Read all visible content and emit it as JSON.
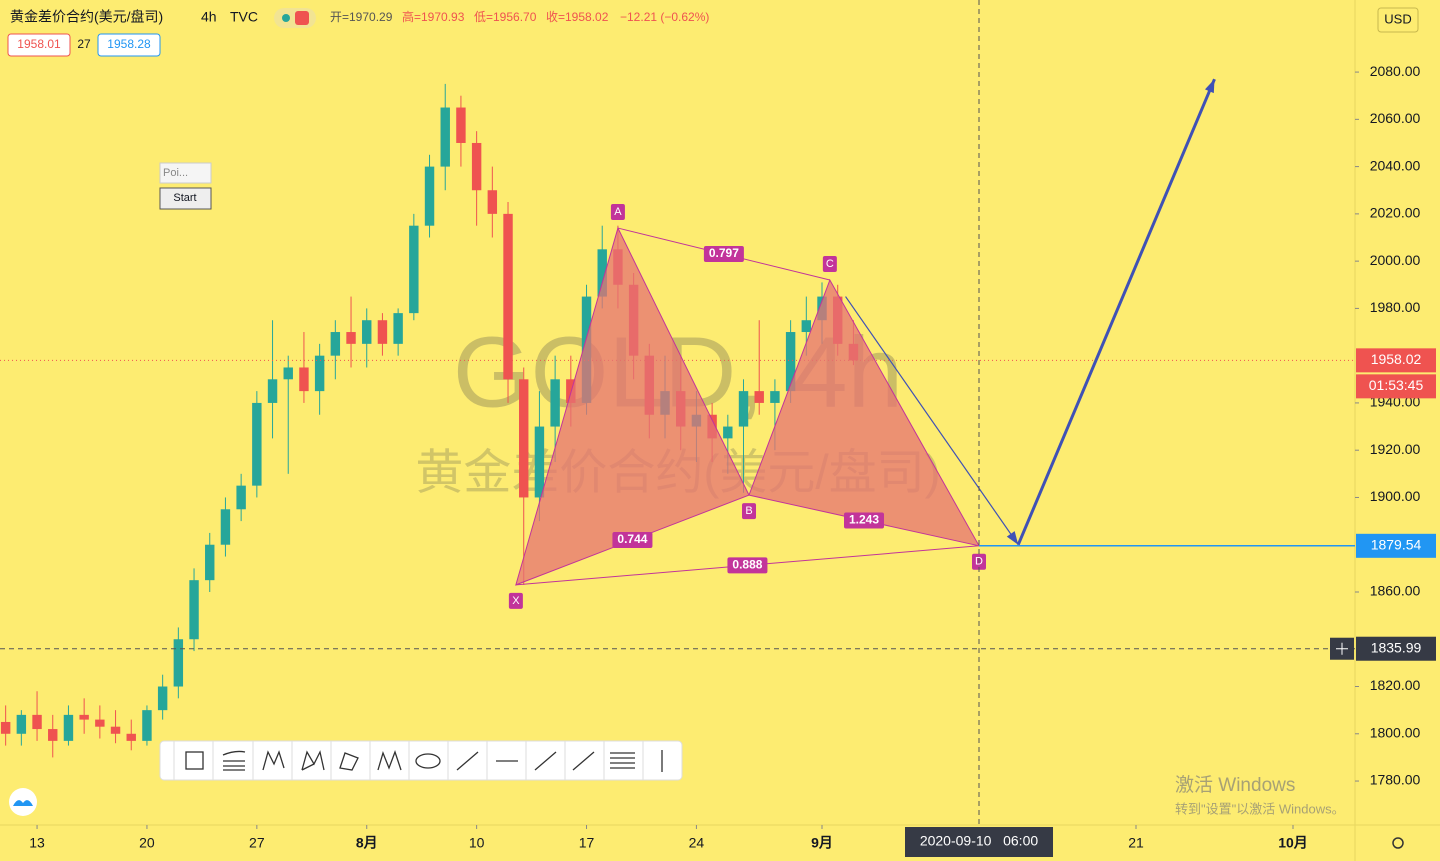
{
  "header": {
    "symbol": "黄金差价合约(美元/盘司)",
    "interval": "4h",
    "source": "TVC",
    "ohlc": [
      "开=1970.29",
      "高=1970.93",
      "低=1956.70",
      "收=1958.02",
      "−12.21 (−0.62%)"
    ],
    "bid": "1958.01",
    "spread": "27",
    "ask": "1958.28"
  },
  "currency": "USD",
  "watermark": {
    "line1": "GOLD, 4h",
    "line2": "黄金差价合约(美元/盘司)"
  },
  "panel": {
    "title": "Poi...",
    "button": "Start"
  },
  "windows": {
    "line1": "激活 Windows",
    "line2": "转到\"设置\"以激活 Windows。"
  },
  "chart_data": {
    "type": "candlestick",
    "x": [
      -2,
      -1,
      0,
      1,
      2,
      3,
      4,
      5,
      6,
      7,
      8,
      9,
      10,
      11,
      12,
      13,
      14,
      15,
      16,
      17,
      18,
      19,
      20,
      21,
      22,
      23,
      24,
      25,
      26,
      27,
      28,
      29,
      30,
      31,
      32,
      33,
      34,
      35,
      36,
      37,
      38,
      39,
      40,
      41,
      42,
      43,
      44,
      45,
      46,
      47,
      48,
      49,
      50,
      51,
      52
    ],
    "open": [
      1805,
      1800,
      1808,
      1802,
      1797,
      1808,
      1806,
      1803,
      1800,
      1797,
      1810,
      1820,
      1840,
      1865,
      1880,
      1895,
      1905,
      1940,
      1950,
      1955,
      1945,
      1960,
      1970,
      1965,
      1975,
      1965,
      1978,
      2015,
      2040,
      2065,
      2050,
      2030,
      2020,
      1950,
      1900,
      1930,
      1950,
      1940,
      1985,
      2005,
      1990,
      1960,
      1935,
      1945,
      1930,
      1935,
      1925,
      1930,
      1945,
      1940,
      1945,
      1970,
      1975,
      1985,
      1965
    ],
    "high": [
      1812,
      1810,
      1818,
      1808,
      1812,
      1815,
      1812,
      1810,
      1806,
      1812,
      1825,
      1845,
      1870,
      1885,
      1900,
      1910,
      1945,
      1975,
      1960,
      1970,
      1965,
      1975,
      1985,
      1980,
      1978,
      1980,
      2020,
      2045,
      2075,
      2070,
      2055,
      2040,
      2025,
      1955,
      1945,
      1960,
      1960,
      1990,
      2015,
      2015,
      1995,
      1965,
      1960,
      1960,
      1945,
      1940,
      1935,
      1950,
      1975,
      1950,
      1975,
      1985,
      1991,
      1990,
      1975
    ],
    "low": [
      1795,
      1795,
      1797,
      1790,
      1795,
      1800,
      1798,
      1796,
      1793,
      1795,
      1806,
      1815,
      1835,
      1860,
      1875,
      1890,
      1900,
      1925,
      1910,
      1940,
      1935,
      1950,
      1955,
      1955,
      1960,
      1960,
      1975,
      2010,
      2030,
      2040,
      2015,
      2010,
      1940,
      1863,
      1890,
      1915,
      1930,
      1935,
      1980,
      1980,
      1950,
      1925,
      1925,
      1920,
      1915,
      1915,
      1910,
      1902,
      1935,
      1920,
      1940,
      1960,
      1965,
      1960,
      1956
    ],
    "close": [
      1800,
      1808,
      1802,
      1797,
      1808,
      1806,
      1803,
      1800,
      1797,
      1810,
      1820,
      1840,
      1865,
      1880,
      1895,
      1905,
      1940,
      1950,
      1955,
      1945,
      1960,
      1970,
      1965,
      1975,
      1965,
      1978,
      2015,
      2040,
      2065,
      2050,
      2030,
      2020,
      1950,
      1900,
      1930,
      1950,
      1940,
      1985,
      2005,
      1990,
      1960,
      1935,
      1945,
      1930,
      1935,
      1925,
      1930,
      1945,
      1940,
      1945,
      1970,
      1975,
      1985,
      1965,
      1958
    ],
    "up_color": "#26a69a",
    "down_color": "#ef5350",
    "xlim": [
      -2.36,
      83.95
    ],
    "xticks": [
      {
        "value": 0,
        "label": "13"
      },
      {
        "value": 7,
        "label": "20"
      },
      {
        "value": 14,
        "label": "27"
      },
      {
        "value": 21,
        "label": "8月"
      },
      {
        "value": 28,
        "label": "10"
      },
      {
        "value": 35,
        "label": "17"
      },
      {
        "value": 42,
        "label": "24"
      },
      {
        "value": 50,
        "label": "9月"
      },
      {
        "value": 70,
        "label": "21"
      },
      {
        "value": 80,
        "label": "10月"
      }
    ],
    "ylim": [
      1761.4,
      2110.5
    ],
    "yticks": [
      {
        "value": 1780,
        "label": "1780.00"
      },
      {
        "value": 1800,
        "label": "1800.00"
      },
      {
        "value": 1820,
        "label": "1820.00"
      },
      {
        "value": 1860,
        "label": "1860.00"
      },
      {
        "value": 1900,
        "label": "1900.00"
      },
      {
        "value": 1920,
        "label": "1920.00"
      },
      {
        "value": 1940,
        "label": "1940.00"
      },
      {
        "value": 1980,
        "label": "1980.00"
      },
      {
        "value": 2000,
        "label": "2000.00"
      },
      {
        "value": 2020,
        "label": "2020.00"
      },
      {
        "value": 2040,
        "label": "2040.00"
      },
      {
        "value": 2060,
        "label": "2060.00"
      },
      {
        "value": 2080,
        "label": "2080.00"
      }
    ],
    "last_price": {
      "value": 1958.02,
      "countdown": "01:53:45",
      "color": "#ef5350"
    },
    "pattern": {
      "color": "#c2349a",
      "fill": "#e57373",
      "points": [
        {
          "name": "X",
          "x": 30.5,
          "y": 1863
        },
        {
          "name": "A",
          "x": 37,
          "y": 2014
        },
        {
          "name": "B",
          "x": 45.35,
          "y": 1901
        },
        {
          "name": "C",
          "x": 50.5,
          "y": 1992
        },
        {
          "name": "D",
          "x": 60,
          "y": 1879.54
        }
      ],
      "ratios": [
        0.797,
        0.744,
        1.243,
        0.888
      ]
    },
    "target_line": {
      "value": 1879.54,
      "color": "#2196f3"
    },
    "projection": {
      "color": "#3f51b5",
      "x": [
        51.5,
        62.5,
        75
      ],
      "y": [
        1985,
        1880,
        2077
      ]
    },
    "crosshair": {
      "y": 1835.99,
      "x": 60,
      "x_label": "2020-09-10   06:00"
    }
  }
}
